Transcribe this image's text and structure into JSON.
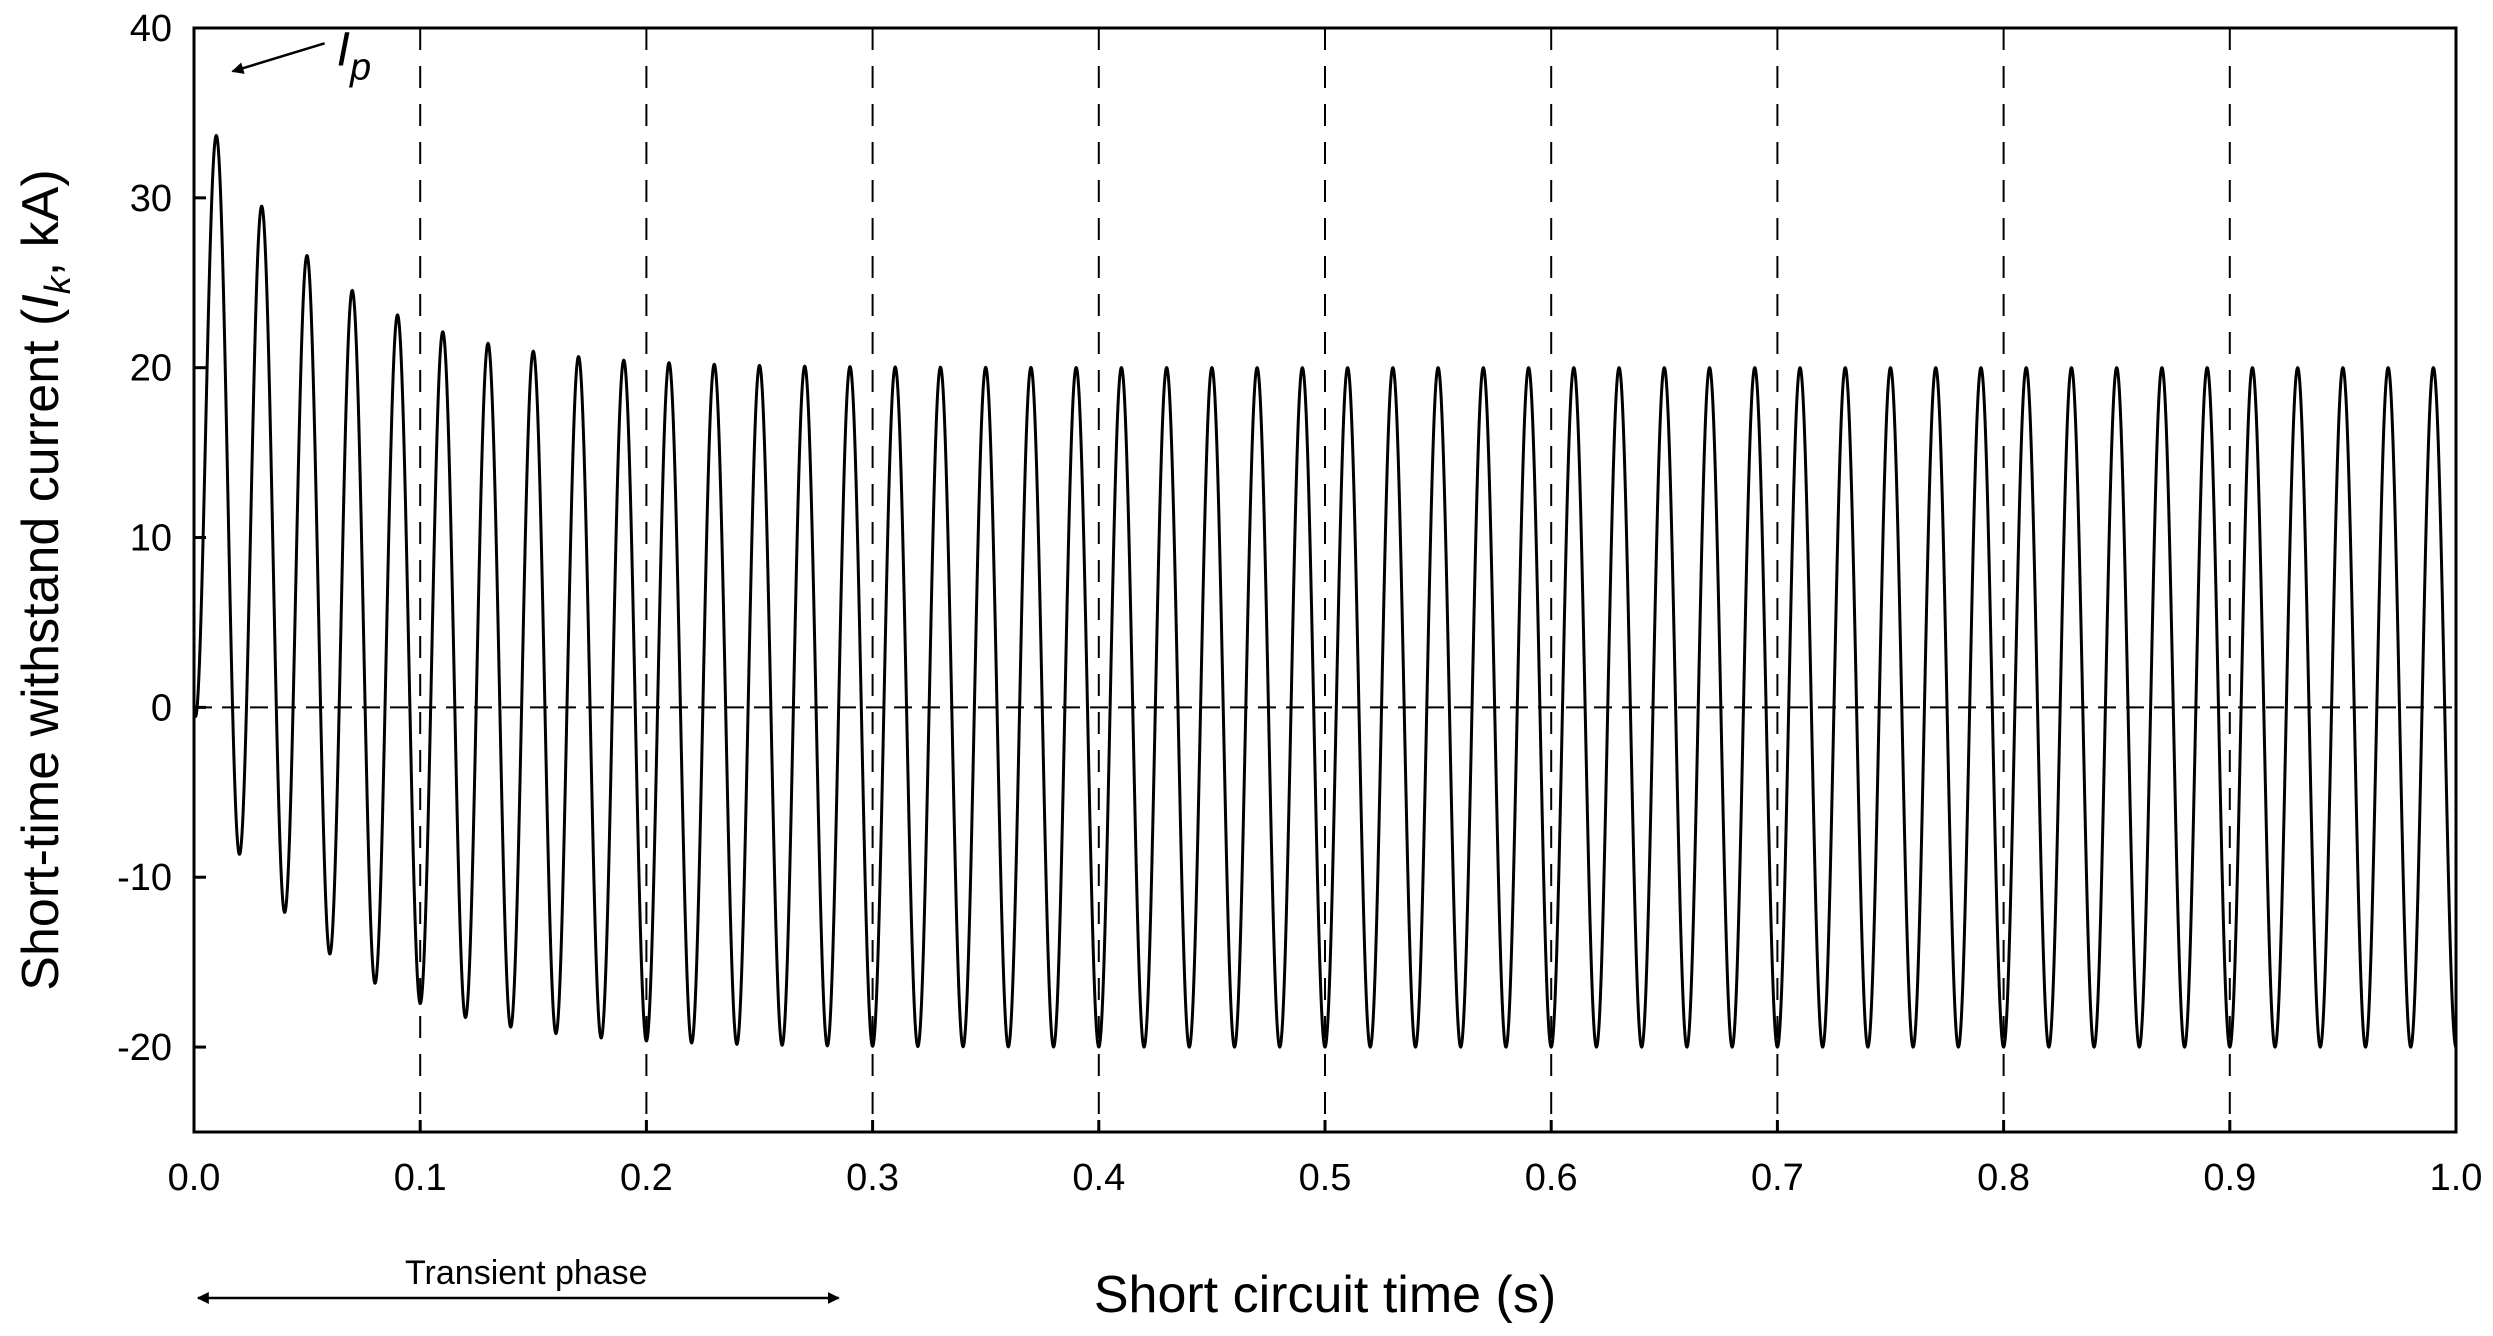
{
  "chart_data": {
    "type": "line",
    "title": "",
    "xlabel": "Short circuit time (s)",
    "ylabel": {
      "prefix": "Short-time withstand current (",
      "symbol": "I",
      "subscript": "k",
      "suffix": ", kA)"
    },
    "xlim": [
      0,
      1.0
    ],
    "ylim": [
      -25,
      40
    ],
    "xticks": [
      "0.0",
      "0.1",
      "0.2",
      "0.3",
      "0.4",
      "0.5",
      "0.6",
      "0.7",
      "0.8",
      "0.9",
      "1.0"
    ],
    "yticks": [
      "-20",
      "-10",
      "0",
      "10",
      "20",
      "30",
      "40"
    ],
    "grid": "vertical dashed lines at 0.1 s intervals; dashed zero line",
    "series": [
      {
        "frequency_hz": 50,
        "ac_amplitude_ka": 20,
        "peak_points": [
          {
            "t": 0.01,
            "y": 37.8
          },
          {
            "t": 0.03,
            "y": 33.4
          },
          {
            "t": 0.05,
            "y": 30.2
          },
          {
            "t": 0.07,
            "y": 27.7
          },
          {
            "t": 0.09,
            "y": 25.9
          },
          {
            "t": 0.11,
            "y": 24.5
          },
          {
            "t": 0.13,
            "y": 23.4
          },
          {
            "t": 0.15,
            "y": 22.6
          },
          {
            "t": 0.17,
            "y": 22.0
          },
          {
            "t": 0.19,
            "y": 21.5
          },
          {
            "t": 0.21,
            "y": 21.2
          },
          {
            "t": 0.23,
            "y": 21.0
          },
          {
            "t": 0.25,
            "y": 20.8
          },
          {
            "t": 0.27,
            "y": 20.6
          },
          {
            "t": 0.29,
            "y": 20.5
          },
          {
            "t": 0.31,
            "y": 20.3
          },
          {
            "t": 0.33,
            "y": 20.2
          },
          {
            "t": 0.35,
            "y": 20.2
          }
        ],
        "trough_points": [
          {
            "t": 0.02,
            "y": -5.0
          },
          {
            "t": 0.04,
            "y": -8.8
          },
          {
            "t": 0.06,
            "y": -11.6
          },
          {
            "t": 0.08,
            "y": -13.8
          },
          {
            "t": 0.1,
            "y": -15.4
          },
          {
            "t": 0.12,
            "y": -16.5
          },
          {
            "t": 0.14,
            "y": -17.4
          },
          {
            "t": 0.16,
            "y": -18.1
          },
          {
            "t": 0.18,
            "y": -18.6
          },
          {
            "t": 0.2,
            "y": -19.0
          },
          {
            "t": 0.22,
            "y": -19.3
          },
          {
            "t": 0.24,
            "y": -19.5
          },
          {
            "t": 0.26,
            "y": -19.7
          },
          {
            "t": 0.28,
            "y": -19.8
          },
          {
            "t": 0.3,
            "y": -19.9
          },
          {
            "t": 0.32,
            "y": -20.0
          },
          {
            "t": 0.34,
            "y": -20.0
          }
        ]
      }
    ],
    "annotations": {
      "peak_label": {
        "symbol": "I",
        "subscript": "p",
        "t": 0.01,
        "y": 37.8
      },
      "phase_label": {
        "text": "Transient phase",
        "t_start": 0.0,
        "t_end": 0.285
      }
    }
  }
}
